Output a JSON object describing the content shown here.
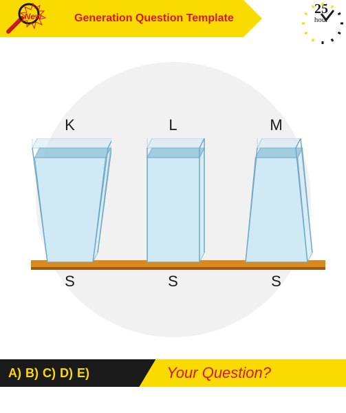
{
  "banner": {
    "bg_color": "#fadb00",
    "new_label": "New",
    "new_color": "#d9161c",
    "title": "Generation Question Template",
    "title_color": "#d9161c",
    "mag_handle_color": "#c41b1e",
    "mag_ring_color": "#1a1a1a",
    "clock_number": "25",
    "clock_sub": "hour",
    "clock_color": "#1a1a1a",
    "clock_tick_color": "#fadb00",
    "clock_hand_color": "#d9161c",
    "check_color": "#1a1a1a"
  },
  "diagram": {
    "circle_bg": "#f1f1f1",
    "shelf_color_top": "#d88a1f",
    "shelf_color_side": "#9c5a10",
    "label_color": "#1a1a1a",
    "container_stroke": "#6fa8c9",
    "water_fill": "#cfe9f5",
    "water_line": "#8fc3dd",
    "containers": [
      {
        "top": "K",
        "bottom": "S",
        "shape": "wide_top"
      },
      {
        "top": "L",
        "bottom": "S",
        "shape": "straight"
      },
      {
        "top": "M",
        "bottom": "S",
        "shape": "narrow_top"
      }
    ]
  },
  "footer": {
    "answers_bg": "#1a1a1a",
    "answers_fg": "#fadb00",
    "answers": [
      "A)",
      "B)",
      "C)",
      "D)",
      "E)"
    ],
    "question_bg": "#fadb00",
    "question_fg": "#d9161c",
    "question_text": "Your Question?"
  }
}
